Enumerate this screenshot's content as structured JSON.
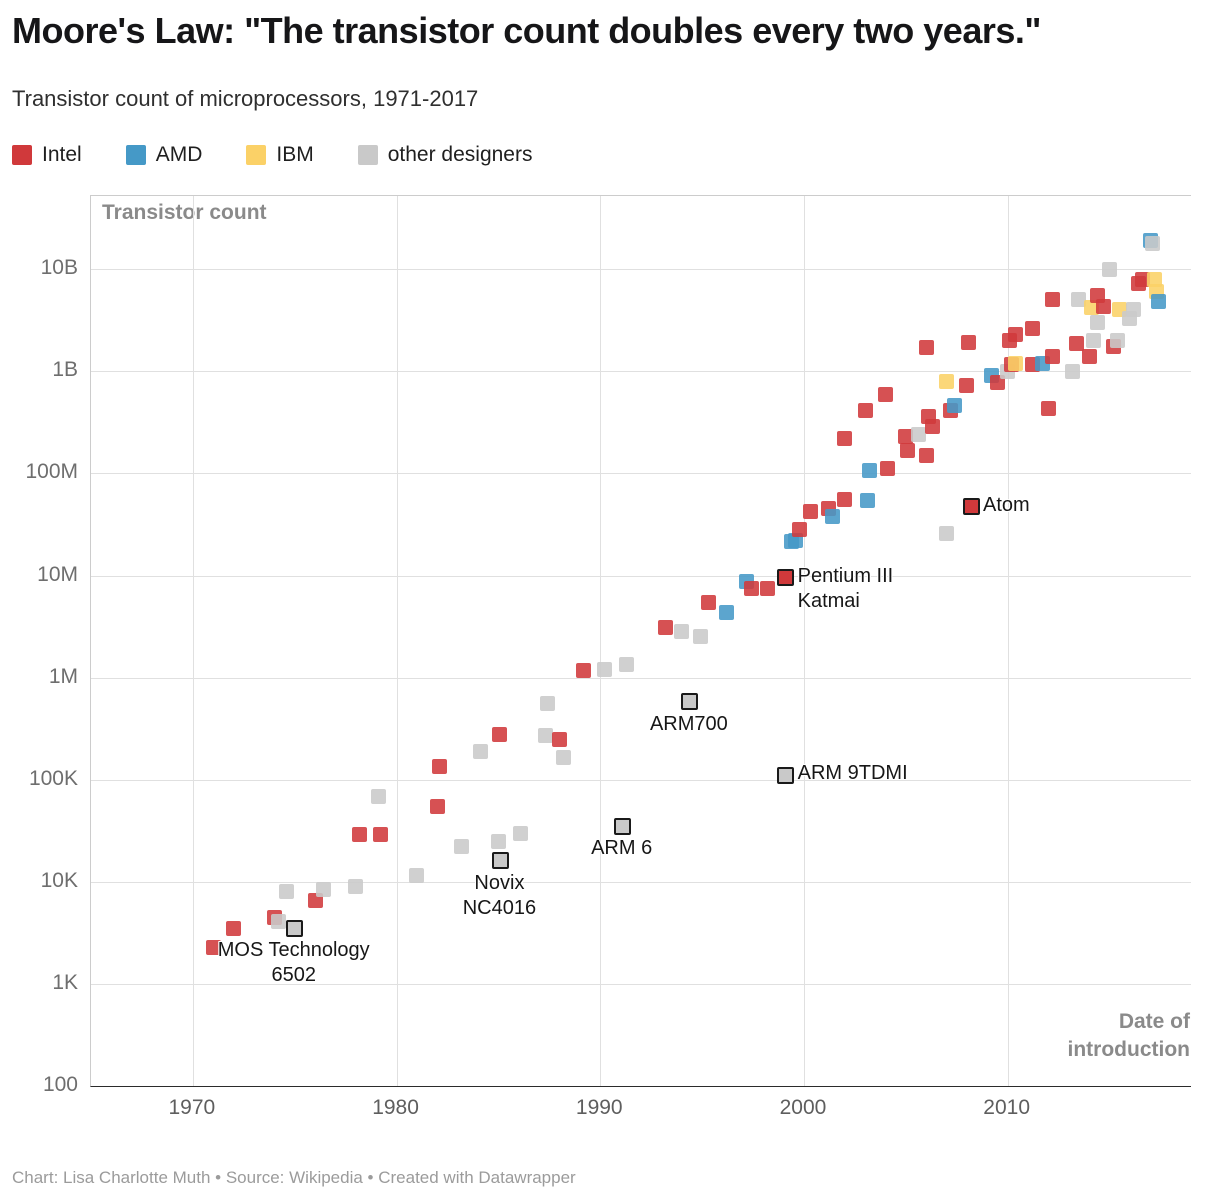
{
  "header": {
    "title": "Moore's Law: \"The transistor count doubles every two years.\"",
    "subtitle": "Transistor count of microprocessors, 1971-2017"
  },
  "legend": {
    "items": [
      {
        "id": "intel",
        "label": "Intel",
        "color": "#d0393b"
      },
      {
        "id": "amd",
        "label": "AMD",
        "color": "#4599c7"
      },
      {
        "id": "ibm",
        "label": "IBM",
        "color": "#fbd167"
      },
      {
        "id": "other",
        "label": "other designers",
        "color": "#c9c9c9"
      }
    ]
  },
  "chart_data": {
    "type": "scatter",
    "title": "Moore's Law: \"The transistor count doubles every two years.\"",
    "subtitle": "Transistor count of microprocessors, 1971-2017",
    "x_axis": {
      "label": "Date of introduction",
      "ticks": [
        1970,
        1980,
        1990,
        2000,
        2010
      ],
      "range": [
        1965,
        2019
      ]
    },
    "y_axis": {
      "label": "Transistor count",
      "scale": "log",
      "ticks": [
        {
          "label": "10B",
          "value": 10000000000
        },
        {
          "label": "1B",
          "value": 1000000000
        },
        {
          "label": "100M",
          "value": 100000000
        },
        {
          "label": "10M",
          "value": 10000000
        },
        {
          "label": "1M",
          "value": 1000000
        },
        {
          "label": "100K",
          "value": 100000
        },
        {
          "label": "10K",
          "value": 10000
        },
        {
          "label": "1K",
          "value": 1000
        },
        {
          "label": "100",
          "value": 100
        }
      ],
      "range": [
        100,
        50000000000
      ]
    },
    "point_format": [
      "year",
      "transistors",
      "designer"
    ],
    "points": [
      [
        1971,
        2250,
        "intel"
      ],
      [
        1972,
        3500,
        "intel"
      ],
      [
        1974,
        4500,
        "intel"
      ],
      [
        1974.2,
        4100,
        "other"
      ],
      [
        1974.6,
        8000,
        "other"
      ],
      [
        1976,
        6500,
        "intel"
      ],
      [
        1976.4,
        8500,
        "other"
      ],
      [
        1978,
        9000,
        "other"
      ],
      [
        1978.2,
        29000,
        "intel"
      ],
      [
        1979.2,
        29000,
        "intel"
      ],
      [
        1979.1,
        68000,
        "other"
      ],
      [
        1981,
        11500,
        "other"
      ],
      [
        1982,
        55000,
        "intel"
      ],
      [
        1982.1,
        134000,
        "intel"
      ],
      [
        1983.2,
        22000,
        "other"
      ],
      [
        1984.1,
        190000,
        "other"
      ],
      [
        1985.05,
        275000,
        "intel"
      ],
      [
        1985,
        25000,
        "other"
      ],
      [
        1986.1,
        30000,
        "other"
      ],
      [
        1987.3,
        273000,
        "other"
      ],
      [
        1987.4,
        553000,
        "other"
      ],
      [
        1988,
        250000,
        "intel"
      ],
      [
        1988.2,
        165000,
        "other"
      ],
      [
        1989.2,
        1180000,
        "intel"
      ],
      [
        1990.2,
        1200000,
        "other"
      ],
      [
        1991.3,
        1350000,
        "other"
      ],
      [
        1993.2,
        3100000,
        "intel"
      ],
      [
        1994,
        2800000,
        "other"
      ],
      [
        1994.9,
        2500000,
        "other"
      ],
      [
        1995.3,
        5500000,
        "intel"
      ],
      [
        1996.2,
        4300000,
        "amd"
      ],
      [
        1997.2,
        8800000,
        "amd"
      ],
      [
        1997.4,
        7500000,
        "intel"
      ],
      [
        1998.2,
        7500000,
        "intel"
      ],
      [
        1999.4,
        21300000,
        "amd"
      ],
      [
        1999.6,
        22000000,
        "amd"
      ],
      [
        1999.8,
        28100000,
        "intel"
      ],
      [
        2000.3,
        42000000,
        "intel"
      ],
      [
        2001.2,
        45000000,
        "intel"
      ],
      [
        2001.4,
        37500000,
        "amd"
      ],
      [
        2002,
        55000000,
        "intel"
      ],
      [
        2002,
        220000000,
        "intel"
      ],
      [
        2003.1,
        54300000,
        "amd"
      ],
      [
        2003.2,
        105900000,
        "amd"
      ],
      [
        2003,
        410000000,
        "intel"
      ],
      [
        2004.1,
        112000000,
        "intel"
      ],
      [
        2004,
        592000000,
        "intel"
      ],
      [
        2005.1,
        169000000,
        "intel"
      ],
      [
        2005,
        228000000,
        "intel"
      ],
      [
        2005.6,
        241000000,
        "other"
      ],
      [
        2006,
        151000000,
        "intel"
      ],
      [
        2006.3,
        291000000,
        "intel"
      ],
      [
        2006.1,
        362000000,
        "intel"
      ],
      [
        2006,
        1720000000,
        "intel"
      ],
      [
        2007.2,
        411000000,
        "intel"
      ],
      [
        2007.4,
        463000000,
        "amd"
      ],
      [
        2007,
        789000000,
        "ibm"
      ],
      [
        2007,
        26000000,
        "other"
      ],
      [
        2008,
        731000000,
        "intel"
      ],
      [
        2008.1,
        1900000000,
        "intel"
      ],
      [
        2009.2,
        904000000,
        "amd"
      ],
      [
        2009.5,
        774000000,
        "intel"
      ],
      [
        2010,
        1000000000,
        "other"
      ],
      [
        2010.2,
        1170000000,
        "intel"
      ],
      [
        2010.4,
        1200000000,
        "ibm"
      ],
      [
        2010.1,
        2000000000,
        "intel"
      ],
      [
        2010.4,
        2300000000,
        "intel"
      ],
      [
        2011.2,
        1160000000,
        "intel"
      ],
      [
        2011.2,
        2600000000,
        "intel"
      ],
      [
        2011.7,
        1200000000,
        "amd"
      ],
      [
        2012.2,
        1400000000,
        "intel"
      ],
      [
        2012.2,
        5000000000,
        "intel"
      ],
      [
        2012,
        430000000,
        "intel"
      ],
      [
        2013.2,
        1000000000,
        "other"
      ],
      [
        2013.4,
        1860000000,
        "intel"
      ],
      [
        2013.5,
        5000000000,
        "other"
      ],
      [
        2014,
        1400000000,
        "intel"
      ],
      [
        2014.2,
        2000000000,
        "other"
      ],
      [
        2014.4,
        3000000000,
        "other"
      ],
      [
        2014.1,
        4200000000,
        "ibm"
      ],
      [
        2014.7,
        4310000000,
        "intel"
      ],
      [
        2014.4,
        5560000000,
        "intel"
      ],
      [
        2015.2,
        1750000000,
        "intel"
      ],
      [
        2015.4,
        2000000000,
        "other"
      ],
      [
        2015.5,
        3990000000,
        "ibm"
      ],
      [
        2015,
        10000000000,
        "other"
      ],
      [
        2016,
        3300000000,
        "other"
      ],
      [
        2016.2,
        4000000000,
        "other"
      ],
      [
        2016.4,
        7200000000,
        "intel"
      ],
      [
        2016.6,
        8000000000,
        "intel"
      ],
      [
        2017,
        19200000000,
        "amd"
      ],
      [
        2017.1,
        18000000000,
        "other"
      ],
      [
        2017.2,
        8000000000,
        "ibm"
      ],
      [
        2017.3,
        6100000000,
        "ibm"
      ],
      [
        2017.4,
        4800000000,
        "amd"
      ]
    ],
    "annotations": [
      {
        "label": "MOS Technology\n6502",
        "year": 1975,
        "transistors": 3510,
        "designer": "other",
        "placement": "below"
      },
      {
        "label": "Novix\nNC4016",
        "year": 1985.1,
        "transistors": 16000,
        "designer": "other",
        "placement": "below"
      },
      {
        "label": "ARM 6",
        "year": 1991.1,
        "transistors": 35000,
        "designer": "other",
        "placement": "below"
      },
      {
        "label": "ARM700",
        "year": 1994.4,
        "transistors": 578977,
        "designer": "other",
        "placement": "below"
      },
      {
        "label": "ARM 9TDMI",
        "year": 1999.1,
        "transistors": 111000,
        "designer": "other",
        "placement": "right"
      },
      {
        "label": "Pentium III\nKatmai",
        "year": 1999.1,
        "transistors": 9500000,
        "designer": "intel",
        "placement": "right"
      },
      {
        "label": "Atom",
        "year": 2008.2,
        "transistors": 47000000,
        "designer": "intel",
        "placement": "right"
      }
    ],
    "grid": true,
    "legend_position": "top-left"
  },
  "footer": {
    "credit": "Chart: Lisa Charlotte Muth • Source: Wikipedia • Created with Datawrapper"
  }
}
